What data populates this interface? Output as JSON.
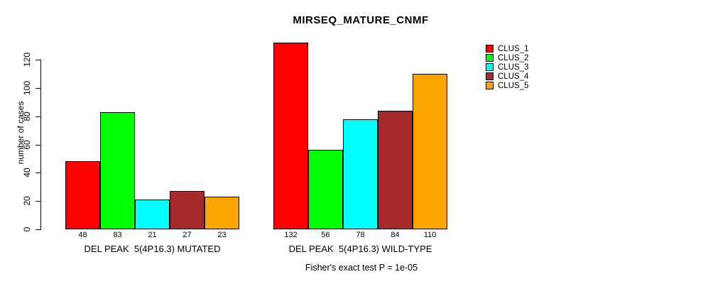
{
  "title": "MIRSEQ_MATURE_CNMF",
  "y_axis_label": "number of cases",
  "caption": "Fisher's exact test P = 1e-05",
  "legend": {
    "position": "top-right",
    "entries": [
      {
        "label": "CLUS_1",
        "color": "#FF0000"
      },
      {
        "label": "CLUS_2",
        "color": "#00FF00"
      },
      {
        "label": "CLUS_3",
        "color": "#00FFFF"
      },
      {
        "label": "CLUS_4",
        "color": "#A52A2A"
      },
      {
        "label": "CLUS_5",
        "color": "#FFA500"
      }
    ]
  },
  "chart_data": {
    "type": "bar",
    "title": "MIRSEQ_MATURE_CNMF",
    "xlabel": "",
    "ylabel": "number of cases",
    "yticks": [
      0,
      20,
      40,
      60,
      80,
      100,
      120
    ],
    "ylim": [
      0,
      132
    ],
    "grid": false,
    "legend_position": "top-right",
    "series": [
      "CLUS_1",
      "CLUS_2",
      "CLUS_3",
      "CLUS_4",
      "CLUS_5"
    ],
    "series_colors": [
      "#FF0000",
      "#00FF00",
      "#00FFFF",
      "#A52A2A",
      "#FFA500"
    ],
    "groups": [
      {
        "label": "DEL PEAK  5(4P16.3) MUTATED",
        "values": [
          48,
          83,
          21,
          27,
          23
        ]
      },
      {
        "label": "DEL PEAK  5(4P16.3) WILD-TYPE",
        "values": [
          132,
          56,
          78,
          84,
          110
        ]
      }
    ],
    "bar_value_labels_shown": true,
    "annotation": "Fisher's exact test P = 1e-05"
  }
}
